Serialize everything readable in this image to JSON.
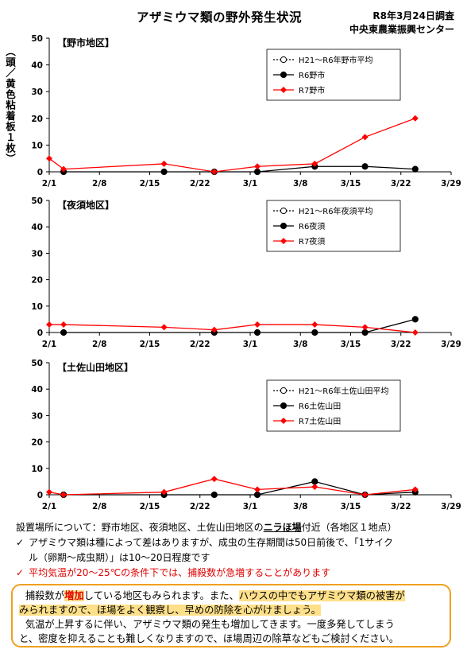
{
  "header": {
    "title": "アザミウマ類の野外発生状況",
    "date": "R8年3月24日調査",
    "org": "中央東農業振興センター"
  },
  "y_axis_label": "（頭／黄色粘着板１枚）",
  "chart_data": [
    {
      "type": "line",
      "title": "【野市地区】",
      "categories": [
        "2/1",
        "2/8",
        "2/15",
        "2/22",
        "3/1",
        "3/8",
        "3/15",
        "3/22",
        "3/29"
      ],
      "ylim": [
        0,
        50
      ],
      "yticks": [
        0,
        10,
        20,
        30,
        40,
        50
      ],
      "x_range": [
        "2/1",
        "3/29"
      ],
      "legend_position": "top-right",
      "series": [
        {
          "name": "H21～R6年野市平均",
          "color": "#000000",
          "marker": "open-circle",
          "points": []
        },
        {
          "name": "R6野市",
          "color": "#000000",
          "marker": "filled-circle",
          "points": [
            [
              "2/3",
              0
            ],
            [
              "2/17",
              0
            ],
            [
              "2/24",
              0
            ],
            [
              "3/2",
              0
            ],
            [
              "3/10",
              2
            ],
            [
              "3/17",
              2
            ],
            [
              "3/24",
              1
            ]
          ]
        },
        {
          "name": "R7野市",
          "color": "#ff0000",
          "marker": "diamond",
          "points": [
            [
              "2/1",
              5
            ],
            [
              "2/3",
              1
            ],
            [
              "2/17",
              3
            ],
            [
              "2/24",
              0
            ],
            [
              "3/2",
              2
            ],
            [
              "3/10",
              3
            ],
            [
              "3/17",
              13
            ],
            [
              "3/24",
              20
            ]
          ]
        }
      ]
    },
    {
      "type": "line",
      "title": "【夜須地区】",
      "categories": [
        "2/1",
        "2/8",
        "2/15",
        "2/22",
        "3/1",
        "3/8",
        "3/15",
        "3/22",
        "3/29"
      ],
      "ylim": [
        0,
        50
      ],
      "yticks": [
        0,
        10,
        20,
        30,
        40,
        50
      ],
      "x_range": [
        "2/1",
        "3/29"
      ],
      "legend_position": "top-right",
      "series": [
        {
          "name": "H21～R6年夜須平均",
          "color": "#000000",
          "marker": "open-circle",
          "points": []
        },
        {
          "name": "R6夜須",
          "color": "#000000",
          "marker": "filled-circle",
          "points": [
            [
              "2/3",
              0
            ],
            [
              "2/24",
              0
            ],
            [
              "3/2",
              0
            ],
            [
              "3/10",
              0
            ],
            [
              "3/17",
              0
            ],
            [
              "3/24",
              5
            ]
          ]
        },
        {
          "name": "R7夜須",
          "color": "#ff0000",
          "marker": "diamond",
          "points": [
            [
              "2/1",
              3
            ],
            [
              "2/3",
              3
            ],
            [
              "2/17",
              2
            ],
            [
              "2/24",
              1
            ],
            [
              "3/2",
              3
            ],
            [
              "3/10",
              3
            ],
            [
              "3/17",
              2
            ],
            [
              "3/24",
              0
            ]
          ]
        }
      ]
    },
    {
      "type": "line",
      "title": "【土佐山田地区】",
      "categories": [
        "2/1",
        "2/8",
        "2/15",
        "2/22",
        "3/1",
        "3/8",
        "3/15",
        "3/22",
        "3/29"
      ],
      "ylim": [
        0,
        50
      ],
      "yticks": [
        0,
        10,
        20,
        30,
        40,
        50
      ],
      "x_range": [
        "2/1",
        "3/29"
      ],
      "legend_position": "top-right",
      "series": [
        {
          "name": "H21～R6年土佐山田平均",
          "color": "#000000",
          "marker": "open-circle",
          "points": []
        },
        {
          "name": "R6土佐山田",
          "color": "#000000",
          "marker": "filled-circle",
          "points": [
            [
              "2/3",
              0
            ],
            [
              "2/17",
              0
            ],
            [
              "2/24",
              0
            ],
            [
              "3/2",
              0
            ],
            [
              "3/10",
              5
            ],
            [
              "3/17",
              0
            ],
            [
              "3/24",
              1
            ]
          ]
        },
        {
          "name": "R7土佐山田",
          "color": "#ff0000",
          "marker": "diamond",
          "points": [
            [
              "2/1",
              1
            ],
            [
              "2/3",
              0
            ],
            [
              "2/17",
              1
            ],
            [
              "2/24",
              6
            ],
            [
              "3/2",
              2
            ],
            [
              "3/10",
              3
            ],
            [
              "3/17",
              0
            ],
            [
              "3/24",
              2
            ]
          ]
        }
      ]
    }
  ],
  "notes": {
    "setup_a": "設置場所について：野市地区、夜須地区、土佐山田地区の",
    "setup_b": "ニラほ場",
    "setup_c": "付近（各地区１地点）",
    "check1": "✓",
    "bullet1_line1": "アザミウマ類は種によって差はありますが、成虫の生存期間は50日前後で、「1サイク",
    "bullet1_line2": "ル（卵期～成虫期）」は10～20日程度です",
    "check2": "✓",
    "bullet2": "平均気温が20～25℃の条件下では、捕殺数が急増することがあります"
  },
  "advice": {
    "p1_a": "捕殺数が",
    "p1_b": "増加",
    "p1_c": "している地区もみられます。また、",
    "p1_d": "ハウスの中でもアザミウマ類の被害が",
    "p1_e": "みられますので、ほ場をよく観察し、早めの防除を心がけましょう。",
    "p2_a": "気温が上昇するに伴い、アザミウマ類の発生も増加してきます。一度多発してしまう",
    "p2_b": "と、密度を抑えることも難しくなりますので、ほ場周辺の除草などもご検討ください。"
  },
  "colors": {
    "red": "#ff0000",
    "black": "#000000",
    "box_border": "#f0a020",
    "highlight": "#ffe08a"
  }
}
